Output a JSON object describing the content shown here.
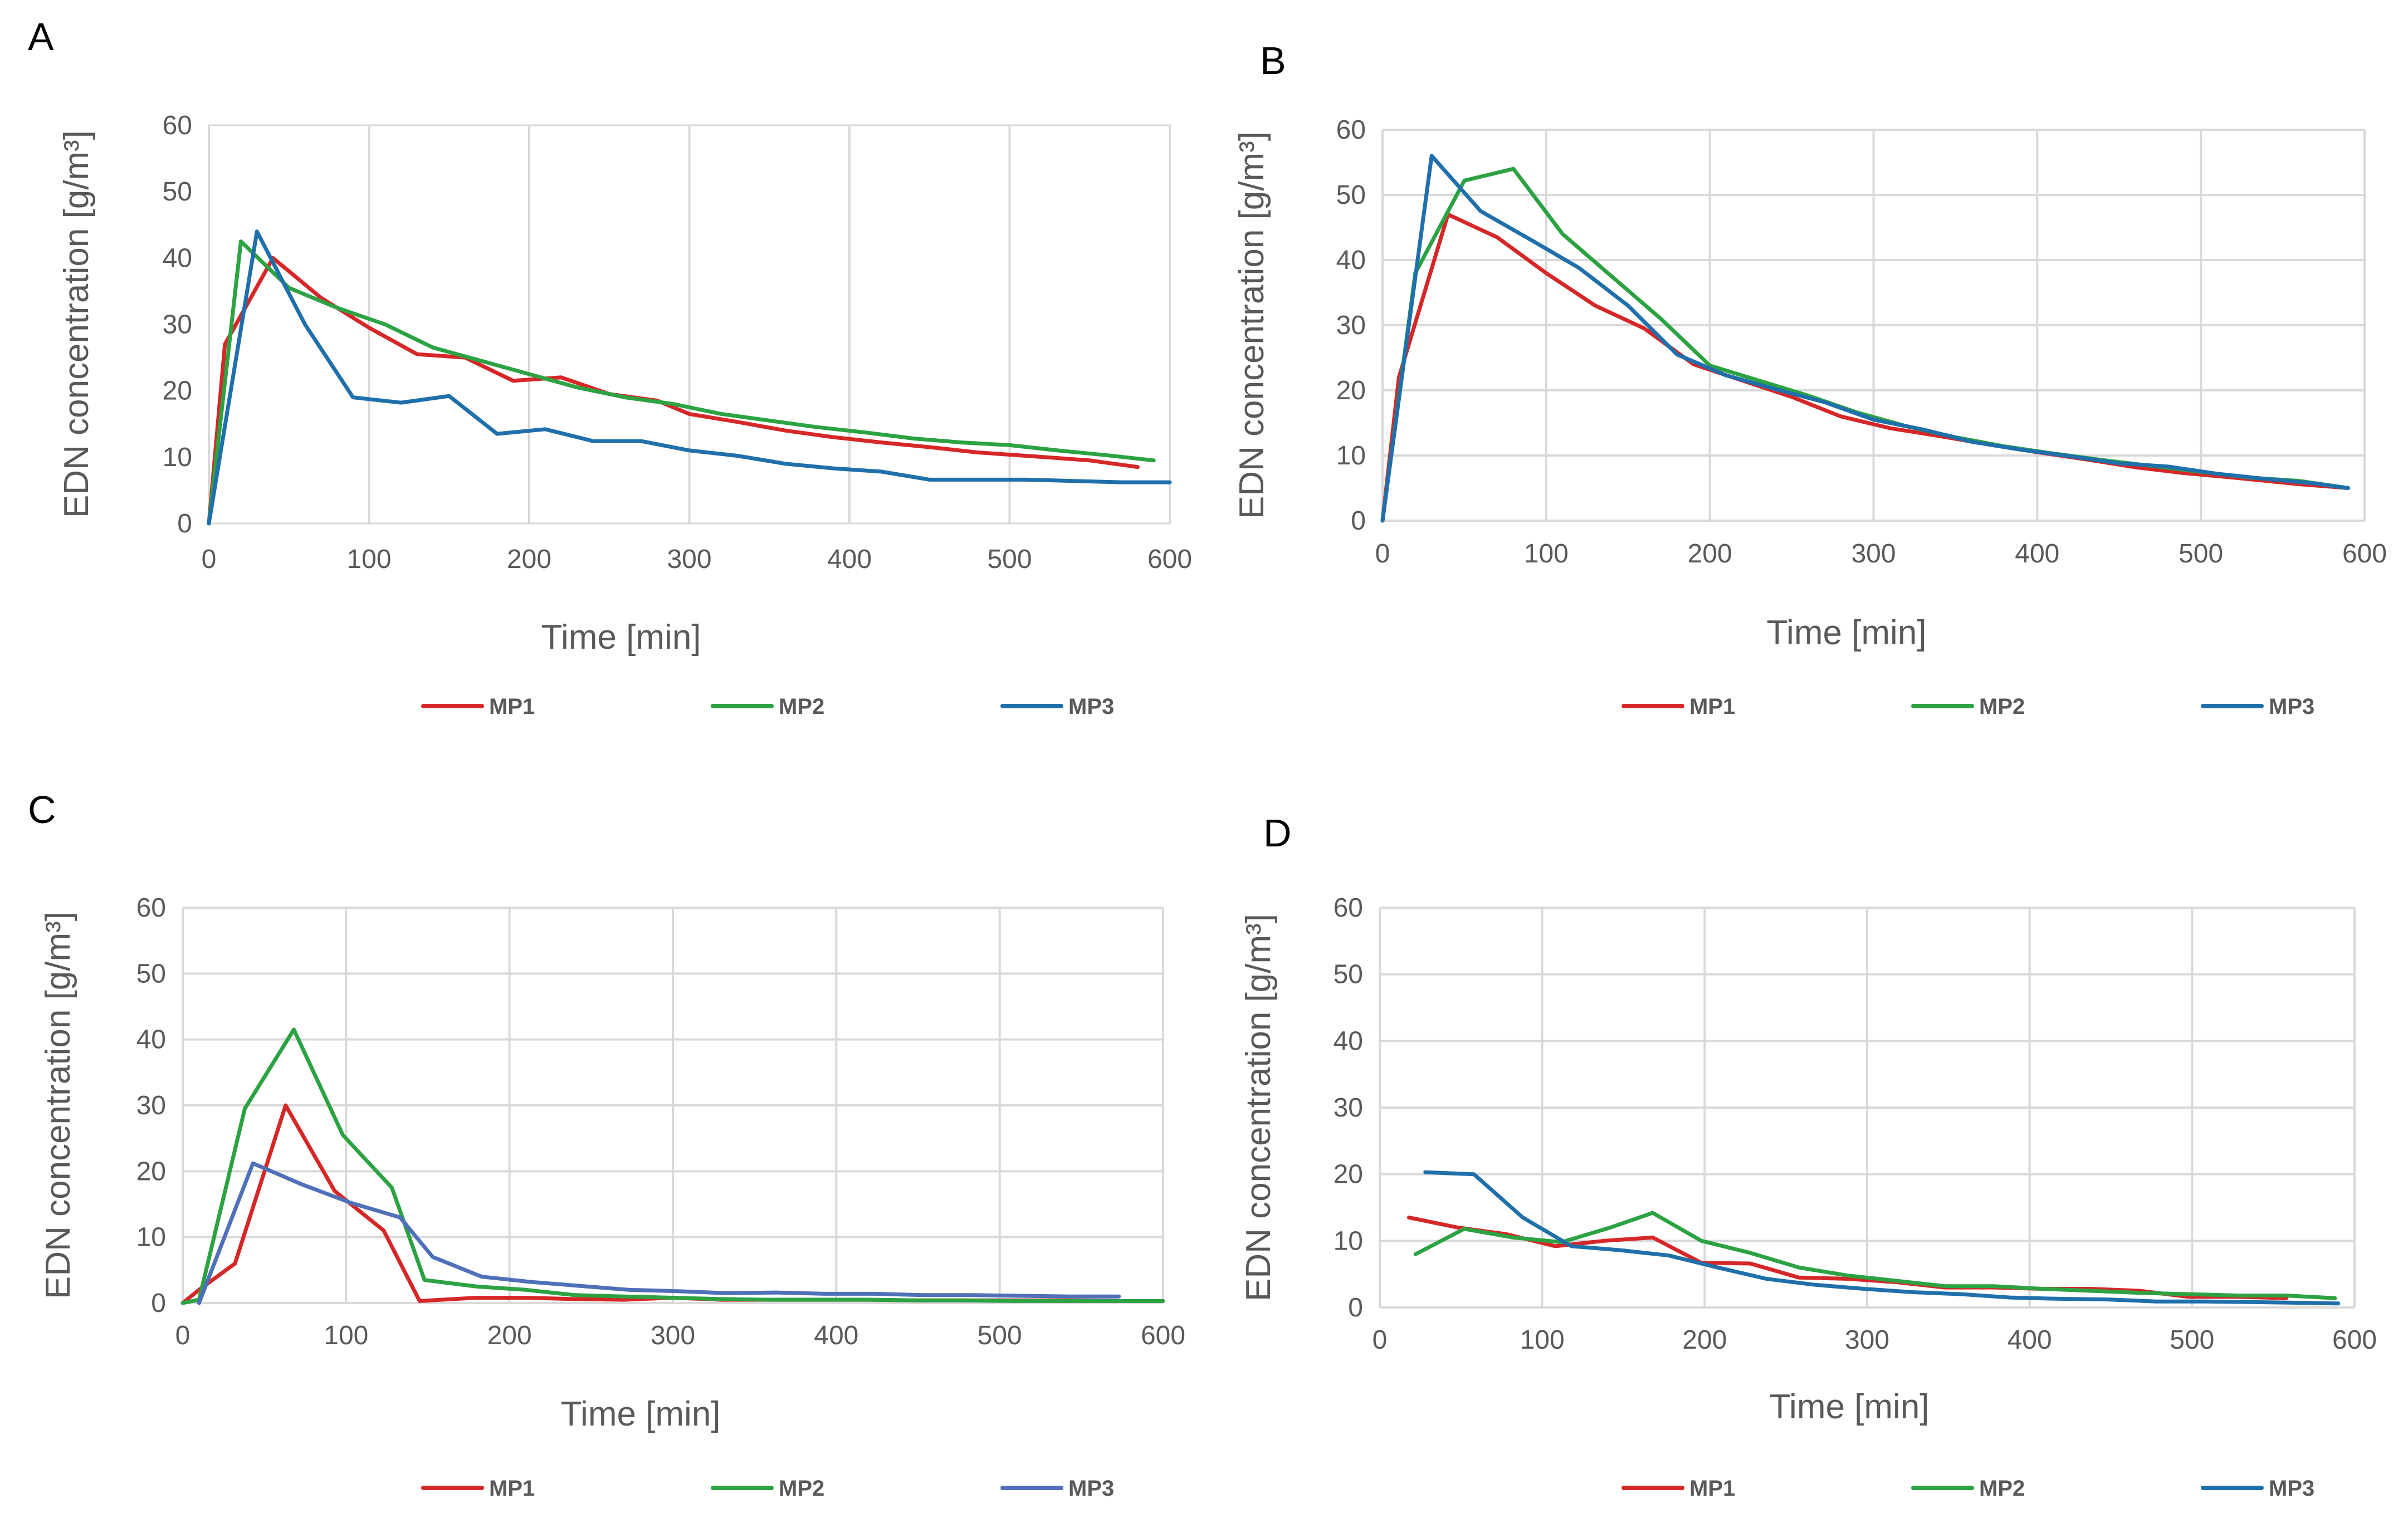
{
  "chart_data": [
    {
      "panel": "A",
      "type": "line",
      "title": "",
      "xlabel": "Time [min]",
      "ylabel": "EDN concentration [g/m³]",
      "xlim": [
        0,
        600
      ],
      "ylim": [
        0,
        60
      ],
      "xticks": [
        0,
        100,
        200,
        300,
        400,
        500,
        600
      ],
      "yticks": [
        0,
        10,
        20,
        30,
        40,
        50,
        60
      ],
      "grid": "vertical",
      "legend_position": "bottom",
      "series": [
        {
          "name": "MP1",
          "color": "#d62728",
          "x": [
            0,
            10,
            40,
            70,
            100,
            130,
            160,
            190,
            220,
            250,
            280,
            300,
            330,
            360,
            390,
            420,
            450,
            480,
            510,
            550,
            580
          ],
          "y": [
            0,
            27,
            40,
            34,
            29.5,
            25.5,
            25,
            21.5,
            22,
            19.5,
            18.5,
            16.5,
            15.3,
            14,
            13,
            12.2,
            11.5,
            10.7,
            10.2,
            9.5,
            8.5
          ]
        },
        {
          "name": "MP2",
          "color": "#2ca243",
          "x": [
            0,
            20,
            50,
            80,
            110,
            140,
            170,
            200,
            230,
            260,
            290,
            320,
            350,
            380,
            410,
            440,
            470,
            500,
            530,
            560,
            590
          ],
          "y": [
            0,
            42.5,
            35.5,
            32.5,
            30,
            26.5,
            24.5,
            22.5,
            20.5,
            19,
            18,
            16.5,
            15.5,
            14.5,
            13.7,
            12.8,
            12.2,
            11.8,
            11,
            10.3,
            9.5
          ]
        },
        {
          "name": "MP3",
          "color": "#1f6fab",
          "x": [
            0,
            30,
            60,
            90,
            120,
            150,
            180,
            210,
            240,
            270,
            300,
            330,
            360,
            390,
            420,
            450,
            480,
            510,
            540,
            570,
            600
          ],
          "y": [
            0,
            44,
            30,
            19,
            18.2,
            19.2,
            13.5,
            14.2,
            12.4,
            12.4,
            11,
            10.2,
            9,
            8.3,
            7.8,
            6.6,
            6.6,
            6.6,
            6.4,
            6.2,
            6.2
          ]
        }
      ]
    },
    {
      "panel": "B",
      "type": "line",
      "title": "",
      "xlabel": "Time [min]",
      "ylabel": "EDN concentration [g/m³]",
      "xlim": [
        0,
        600
      ],
      "ylim": [
        0,
        60
      ],
      "xticks": [
        0,
        100,
        200,
        300,
        400,
        500,
        600
      ],
      "yticks": [
        0,
        10,
        20,
        30,
        40,
        50,
        60
      ],
      "grid": "both",
      "legend_position": "bottom",
      "series": [
        {
          "name": "MP1",
          "color": "#d62728",
          "x": [
            0,
            10,
            40,
            70,
            100,
            130,
            160,
            190,
            220,
            250,
            280,
            310,
            340,
            370,
            400,
            430,
            460,
            490,
            520,
            560,
            590
          ],
          "y": [
            0,
            22,
            47,
            43.5,
            38,
            33,
            29.5,
            24,
            21.5,
            19,
            16,
            14.2,
            13,
            11.7,
            10.5,
            9.4,
            8.2,
            7.3,
            6.6,
            5.6,
            5
          ]
        },
        {
          "name": "MP2",
          "color": "#2ca243",
          "x": [
            0,
            20,
            50,
            80,
            110,
            140,
            170,
            200,
            230,
            260,
            290,
            320,
            350,
            380,
            410,
            440,
            470,
            500,
            530,
            560,
            590
          ],
          "y": [
            0,
            38,
            52.2,
            54,
            44,
            37.5,
            31,
            23.8,
            21.5,
            19.2,
            16.6,
            14.5,
            12.8,
            11.4,
            10.3,
            9.3,
            8.4,
            7.5,
            6.6,
            6.1,
            5
          ]
        },
        {
          "name": "MP3",
          "color": "#1f6fab",
          "x": [
            0,
            30,
            60,
            90,
            120,
            150,
            180,
            210,
            240,
            270,
            300,
            330,
            360,
            390,
            420,
            450,
            480,
            510,
            540,
            570,
            590
          ],
          "y": [
            0,
            56,
            47.5,
            43.2,
            38.8,
            33,
            25.5,
            22.3,
            20.2,
            18.2,
            15.5,
            14,
            12.1,
            10.9,
            9.9,
            8.8,
            8.3,
            7.2,
            6.4,
            5.7,
            5
          ]
        }
      ]
    },
    {
      "panel": "C",
      "type": "line",
      "title": "",
      "xlabel": "Time [min]",
      "ylabel": "EDN concentration [g/m³]",
      "xlim": [
        0,
        600
      ],
      "ylim": [
        0,
        60
      ],
      "xticks": [
        0,
        100,
        200,
        300,
        400,
        500,
        600
      ],
      "yticks": [
        0,
        10,
        20,
        30,
        40,
        50,
        60
      ],
      "grid": "both",
      "legend_position": "bottom",
      "series": [
        {
          "name": "MP1",
          "color": "#d62728",
          "x": [
            0,
            10,
            32,
            63,
            93,
            123,
            145,
            180,
            210,
            240,
            270,
            300,
            330,
            360,
            390,
            420,
            450,
            480,
            510,
            540,
            573
          ],
          "y": [
            0,
            2,
            6,
            30,
            17,
            11,
            0.3,
            0.8,
            0.8,
            0.6,
            0.5,
            0.8,
            0.5,
            0.5,
            0.5,
            0.5,
            0.4,
            0.4,
            0.4,
            0.4,
            0.3
          ]
        },
        {
          "name": "MP2",
          "color": "#2ca243",
          "x": [
            0,
            10,
            38,
            68,
            98,
            128,
            148,
            180,
            210,
            240,
            270,
            300,
            330,
            360,
            390,
            420,
            450,
            480,
            510,
            540,
            570,
            600
          ],
          "y": [
            0,
            0.5,
            29.5,
            41.5,
            25.5,
            17.5,
            3.5,
            2.5,
            2,
            1.2,
            1,
            0.8,
            0.6,
            0.5,
            0.5,
            0.5,
            0.4,
            0.4,
            0.3,
            0.3,
            0.3,
            0.3
          ]
        },
        {
          "name": "MP3",
          "color": "#4f6fb8",
          "x": [
            10,
            43,
            73,
            103,
            133,
            153,
            183,
            213,
            243,
            273,
            303,
            333,
            363,
            393,
            423,
            453,
            483,
            513,
            543,
            573
          ],
          "y": [
            0,
            21.2,
            18,
            15.2,
            13,
            7,
            4,
            3.2,
            2.6,
            2,
            1.8,
            1.5,
            1.6,
            1.4,
            1.4,
            1.2,
            1.2,
            1.1,
            1,
            1
          ]
        }
      ]
    },
    {
      "panel": "D",
      "type": "line",
      "title": "",
      "xlabel": "Time [min]",
      "ylabel": "EDN concentration [g/m³]",
      "xlim": [
        0,
        600
      ],
      "ylim": [
        0,
        60
      ],
      "xticks": [
        0,
        100,
        200,
        300,
        400,
        500,
        600
      ],
      "yticks": [
        0,
        10,
        20,
        30,
        40,
        50,
        60
      ],
      "grid": "both",
      "legend_position": "bottom",
      "series": [
        {
          "name": "MP1",
          "color": "#d62728",
          "x": [
            18,
            48,
            78,
            108,
            138,
            168,
            198,
            228,
            258,
            288,
            318,
            348,
            378,
            408,
            438,
            468,
            498,
            528,
            558
          ],
          "y": [
            13.5,
            12,
            11,
            9.2,
            10,
            10.5,
            6.7,
            6.6,
            4.5,
            4.3,
            3.8,
            3,
            3,
            2.8,
            2.8,
            2.5,
            1.6,
            1.6,
            1.4
          ]
        },
        {
          "name": "MP2",
          "color": "#2ca243",
          "x": [
            22,
            52,
            82,
            112,
            142,
            168,
            198,
            228,
            258,
            288,
            318,
            348,
            378,
            408,
            438,
            468,
            498,
            528,
            558,
            588
          ],
          "y": [
            8,
            11.8,
            10.5,
            9.8,
            12,
            14.2,
            10,
            8.2,
            6,
            4.8,
            4,
            3.2,
            3.2,
            2.8,
            2.5,
            2.2,
            2,
            1.8,
            1.8,
            1.4
          ]
        },
        {
          "name": "MP3",
          "color": "#1f6fab",
          "x": [
            28,
            58,
            88,
            118,
            148,
            178,
            208,
            238,
            268,
            298,
            328,
            358,
            388,
            418,
            448,
            478,
            508,
            538,
            568,
            590
          ],
          "y": [
            20.3,
            20,
            13.5,
            9.2,
            8.6,
            7.8,
            6,
            4.3,
            3.4,
            2.8,
            2.3,
            2,
            1.5,
            1.3,
            1.2,
            0.9,
            0.9,
            0.8,
            0.7,
            0.6
          ]
        }
      ]
    }
  ]
}
